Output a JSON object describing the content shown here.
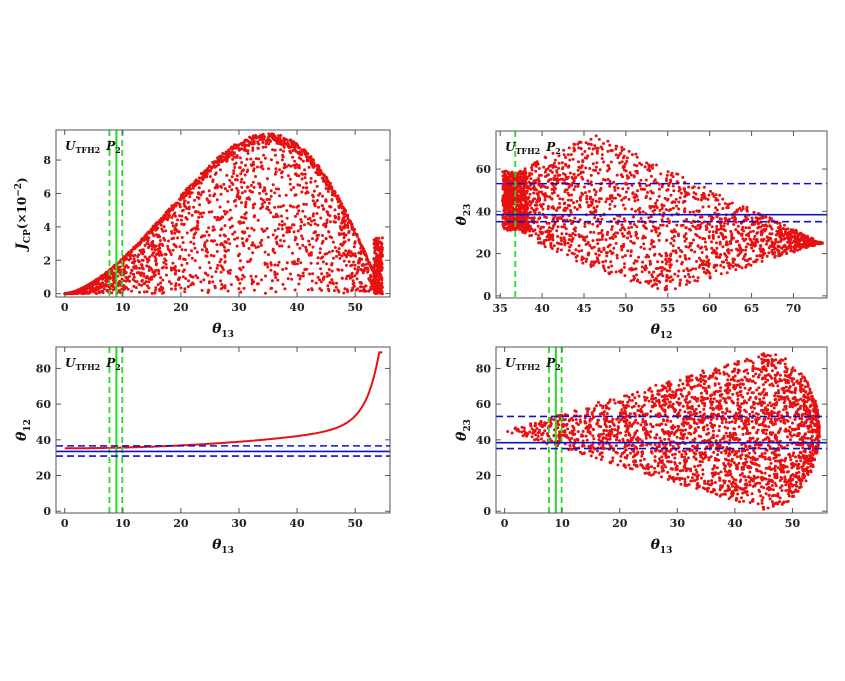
{
  "colors": {
    "points": "#e81010",
    "green": "#22dd22",
    "blue": "#1010cc",
    "frame": "#555555"
  },
  "chart_data": [
    {
      "id": "p1",
      "type": "scatter",
      "tag": {
        "main": "U",
        "sub": "TFH2",
        "p": "P",
        "psub": "2"
      },
      "xlabel": {
        "main": "θ",
        "sub": "13"
      },
      "ylabel": {
        "main": "J",
        "sub": "CP",
        "tail": "(×10",
        "sup": "−2",
        "end": ")"
      },
      "xlim": [
        -1.5,
        56
      ],
      "ylim": [
        -0.2,
        9.8
      ],
      "xticks": [
        0,
        10,
        20,
        30,
        40,
        50
      ],
      "yticks": [
        0,
        2,
        4,
        6,
        8
      ],
      "region": {
        "kind": "dome",
        "xmax": 54.7,
        "peak_x": 35,
        "peak_y": 9.6
      },
      "vlines": [
        {
          "x": 8.9,
          "style": "solid"
        },
        {
          "x": 7.7,
          "style": "dashed"
        },
        {
          "x": 9.9,
          "style": "dashed"
        }
      ],
      "hlines": []
    },
    {
      "id": "p2",
      "type": "scatter",
      "tag": {
        "main": "U",
        "sub": "TFH2",
        "p": "P",
        "psub": "2"
      },
      "xlabel": {
        "main": "θ",
        "sub": "12"
      },
      "ylabel": {
        "main": "θ",
        "sub": "23"
      },
      "xlim": [
        34.5,
        74
      ],
      "ylim": [
        -1,
        78
      ],
      "xticks": [
        35,
        40,
        45,
        50,
        55,
        60,
        65,
        70
      ],
      "yticks": [
        0,
        20,
        40,
        60
      ],
      "region": {
        "kind": "wedge",
        "vertex_x": 35.3,
        "vertex_y": 45,
        "top_x": 46.5,
        "top_y": 76,
        "bottom_x": 55,
        "bottom_y": 2,
        "tip_x": 73.5,
        "tip_y": 25
      },
      "vlines": [
        {
          "x": 36.8,
          "style": "dashed"
        }
      ],
      "hlines": [
        {
          "y": 38.4,
          "style": "solid"
        },
        {
          "y": 35.1,
          "style": "dashed"
        },
        {
          "y": 53.1,
          "style": "dashed"
        }
      ]
    },
    {
      "id": "p3",
      "type": "line",
      "tag": {
        "main": "U",
        "sub": "TFH2",
        "p": "P",
        "psub": "2"
      },
      "xlabel": {
        "main": "θ",
        "sub": "13"
      },
      "ylabel": {
        "main": "θ",
        "sub": "12"
      },
      "xlim": [
        -1.5,
        56
      ],
      "ylim": [
        -1,
        92
      ],
      "xticks": [
        0,
        10,
        20,
        30,
        40,
        50
      ],
      "yticks": [
        0,
        20,
        40,
        60,
        80
      ],
      "curve": {
        "x0": 0,
        "x1": 54.7,
        "y0": 35.26,
        "ymax": 89
      },
      "vlines": [
        {
          "x": 8.9,
          "style": "solid"
        },
        {
          "x": 7.7,
          "style": "dashed"
        },
        {
          "x": 9.9,
          "style": "dashed"
        }
      ],
      "hlines": [
        {
          "y": 33.5,
          "style": "solid"
        },
        {
          "y": 30.9,
          "style": "dashed"
        },
        {
          "y": 36.6,
          "style": "dashed"
        }
      ]
    },
    {
      "id": "p4",
      "type": "scatter",
      "tag": {
        "main": "U",
        "sub": "TFH2",
        "p": "P",
        "psub": "2"
      },
      "xlabel": {
        "main": "θ",
        "sub": "13"
      },
      "ylabel": {
        "main": "θ",
        "sub": "23"
      },
      "xlim": [
        -1.5,
        56
      ],
      "ylim": [
        -1,
        92
      ],
      "xticks": [
        0,
        10,
        20,
        30,
        40,
        50
      ],
      "yticks": [
        0,
        20,
        40,
        60,
        80
      ],
      "region": {
        "kind": "fan",
        "x0": 0,
        "y0": 45,
        "xmax": 54.7,
        "top_x": 45,
        "top_y": 89,
        "bottom_x": 45,
        "bottom_y": 1
      },
      "vlines": [
        {
          "x": 8.9,
          "style": "solid"
        },
        {
          "x": 7.7,
          "style": "dashed"
        },
        {
          "x": 9.9,
          "style": "dashed"
        }
      ],
      "hlines": [
        {
          "y": 38.4,
          "style": "solid"
        },
        {
          "y": 35.1,
          "style": "dashed"
        },
        {
          "y": 53.1,
          "style": "dashed"
        }
      ]
    }
  ]
}
